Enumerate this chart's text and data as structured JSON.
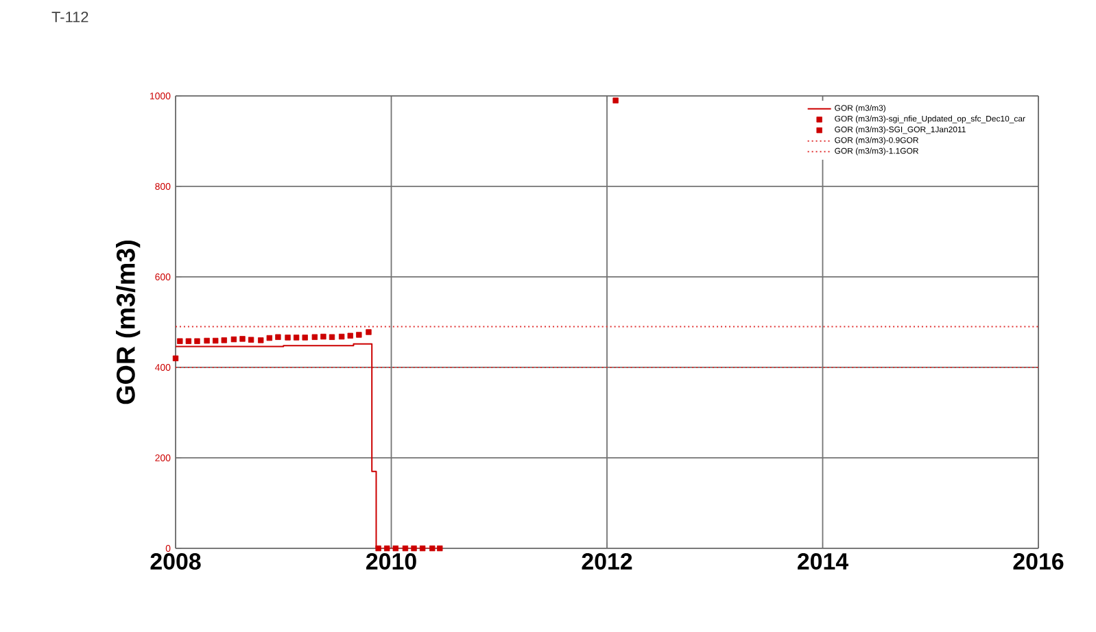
{
  "chart_data": {
    "type": "line",
    "title": "T-112",
    "ylabel": "GOR (m3/m3)",
    "xlim": [
      2008,
      2016
    ],
    "xticks": [
      2008,
      2010,
      2012,
      2014,
      2016
    ],
    "ylim": [
      0,
      1000
    ],
    "yticks": [
      0,
      200,
      400,
      600,
      800,
      1000
    ],
    "grid": true,
    "legend": "top right",
    "series": [
      {
        "name": "GOR (m3/m3)",
        "type": "step",
        "color": "#cc0000",
        "line_style": "solid",
        "x": [
          2008,
          2009.0,
          2009.65,
          2009.82,
          2009.86,
          2010.45
        ],
        "values": [
          446,
          448,
          452,
          170,
          0,
          0
        ]
      },
      {
        "name": "GOR (m3/m3)-sgi_nfie_Updated_op_sfc_Dec10_car",
        "type": "scatter",
        "color": "#cc0000",
        "marker": "square",
        "x": [
          2008.04,
          2008.12,
          2008.2,
          2008.29,
          2008.37,
          2008.45,
          2008.54,
          2008.62,
          2008.7,
          2008.79,
          2008.87,
          2008.95,
          2009.04,
          2009.12,
          2009.2,
          2009.29,
          2009.37,
          2009.45,
          2009.54,
          2009.62,
          2009.7,
          2009.79,
          2009.88,
          2009.96,
          2010.04,
          2010.13,
          2010.21,
          2010.29,
          2010.38,
          2010.45
        ],
        "values": [
          458,
          458,
          458,
          459,
          459,
          460,
          462,
          463,
          461,
          460,
          465,
          467,
          466,
          466,
          466,
          467,
          468,
          467,
          468,
          470,
          472,
          478,
          0,
          0,
          0,
          0,
          0,
          0,
          0,
          0
        ]
      },
      {
        "name": "GOR (m3/m3)-SGI_GOR_1Jan2011",
        "type": "scatter",
        "color": "#cc0000",
        "marker": "square",
        "x": [
          2008,
          2012.08
        ],
        "values": [
          420,
          990
        ]
      },
      {
        "name": "GOR (m3/m3)-0.9GOR",
        "color": "#e03030",
        "line_style": "dotted",
        "x": [
          2008,
          2016
        ],
        "values": [
          400,
          400
        ]
      },
      {
        "name": "GOR (m3/m3)-1.1GOR",
        "color": "#e03030",
        "line_style": "dotted",
        "x": [
          2008,
          2016
        ],
        "values": [
          490,
          490
        ]
      }
    ]
  }
}
